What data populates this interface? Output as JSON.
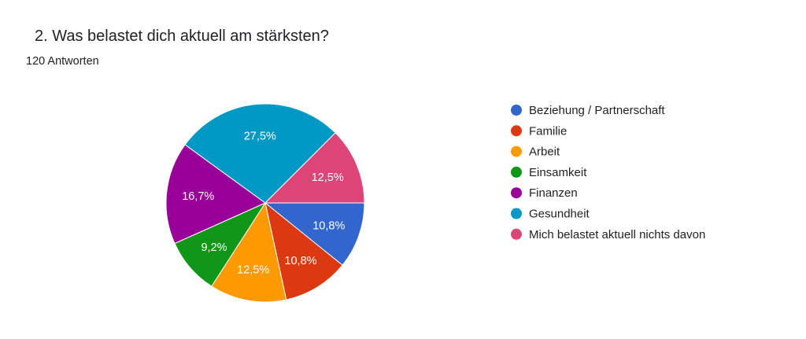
{
  "header": {
    "title": "2. Was belastet dich aktuell am stärksten?",
    "responses": "120 Antworten"
  },
  "chart_data": {
    "type": "pie",
    "title": "",
    "legend_position": "right",
    "start": "3 o'clock, clockwise",
    "categories": [
      "Beziehung / Partnerschaft",
      "Familie",
      "Arbeit",
      "Einsamkeit",
      "Finanzen",
      "Gesundheit",
      "Mich belastet aktuell nichts davon"
    ],
    "values": [
      10.8,
      10.8,
      12.5,
      9.2,
      16.7,
      27.5,
      12.5
    ],
    "labels": [
      "10,8%",
      "10,8%",
      "12,5%",
      "9,2%",
      "16,7%",
      "27,5%",
      "12,5%"
    ],
    "colors": [
      "#3366cc",
      "#dc3912",
      "#ff9900",
      "#109618",
      "#990099",
      "#0099c6",
      "#dd4477"
    ]
  }
}
